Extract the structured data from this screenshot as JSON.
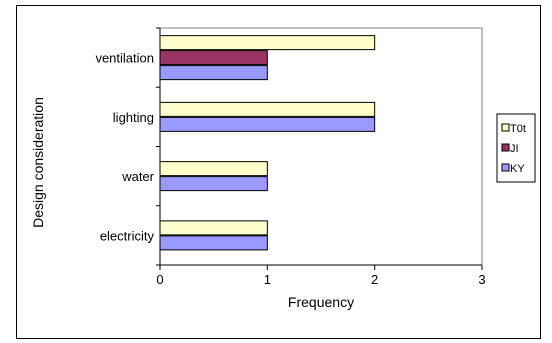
{
  "chart_data": {
    "type": "bar",
    "orientation": "horizontal",
    "categories": [
      "ventilation",
      "lighting",
      "water",
      "electricity"
    ],
    "series": [
      {
        "name": "T0t",
        "color": "#FFFFCC",
        "values": [
          2,
          2,
          1,
          1
        ]
      },
      {
        "name": "JI",
        "color": "#993366",
        "values": [
          1,
          null,
          null,
          null
        ]
      },
      {
        "name": "KY",
        "color": "#9999FF",
        "values": [
          1,
          2,
          1,
          1
        ]
      }
    ],
    "xlabel": "Frequency",
    "ylabel": "Design consideration",
    "xlim": [
      0,
      3
    ],
    "xticks": [
      "0",
      "1",
      "2",
      "3"
    ],
    "grid": false,
    "legend_position": "right",
    "plot_background": "#FFFFFF"
  }
}
